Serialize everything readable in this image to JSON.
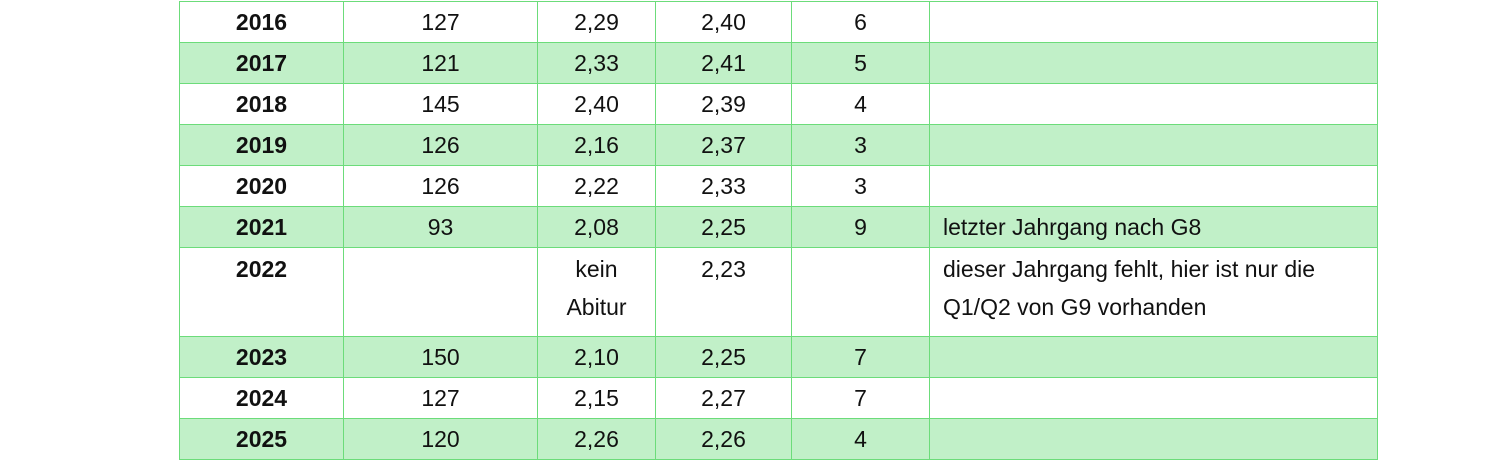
{
  "colors": {
    "border": "#6cdc7a",
    "alt_row_fill": "#c1f0c8"
  },
  "rows": [
    {
      "year": "2016",
      "c1": "127",
      "c2": "2,29",
      "c3": "2,40",
      "c4": "6",
      "note": ""
    },
    {
      "year": "2017",
      "c1": "121",
      "c2": "2,33",
      "c3": "2,41",
      "c4": "5",
      "note": ""
    },
    {
      "year": "2018",
      "c1": "145",
      "c2": "2,40",
      "c3": "2,39",
      "c4": "4",
      "note": ""
    },
    {
      "year": "2019",
      "c1": "126",
      "c2": "2,16",
      "c3": "2,37",
      "c4": "3",
      "note": ""
    },
    {
      "year": "2020",
      "c1": "126",
      "c2": "2,22",
      "c3": "2,33",
      "c4": "3",
      "note": ""
    },
    {
      "year": "2021",
      "c1": "93",
      "c2": "2,08",
      "c3": "2,25",
      "c4": "9",
      "note": "letzter Jahrgang nach G8"
    },
    {
      "year": "2022",
      "c1": "",
      "c2": "kein Abitur",
      "c3": "2,23",
      "c4": "",
      "note": "dieser Jahrgang fehlt, hier ist nur die Q1/Q2 von G9 vorhanden"
    },
    {
      "year": "2023",
      "c1": "150",
      "c2": "2,10",
      "c3": "2,25",
      "c4": "7",
      "note": ""
    },
    {
      "year": "2024",
      "c1": "127",
      "c2": "2,15",
      "c3": "2,27",
      "c4": "7",
      "note": ""
    },
    {
      "year": "2025",
      "c1": "120",
      "c2": "2,26",
      "c3": "2,26",
      "c4": "4",
      "note": ""
    }
  ]
}
